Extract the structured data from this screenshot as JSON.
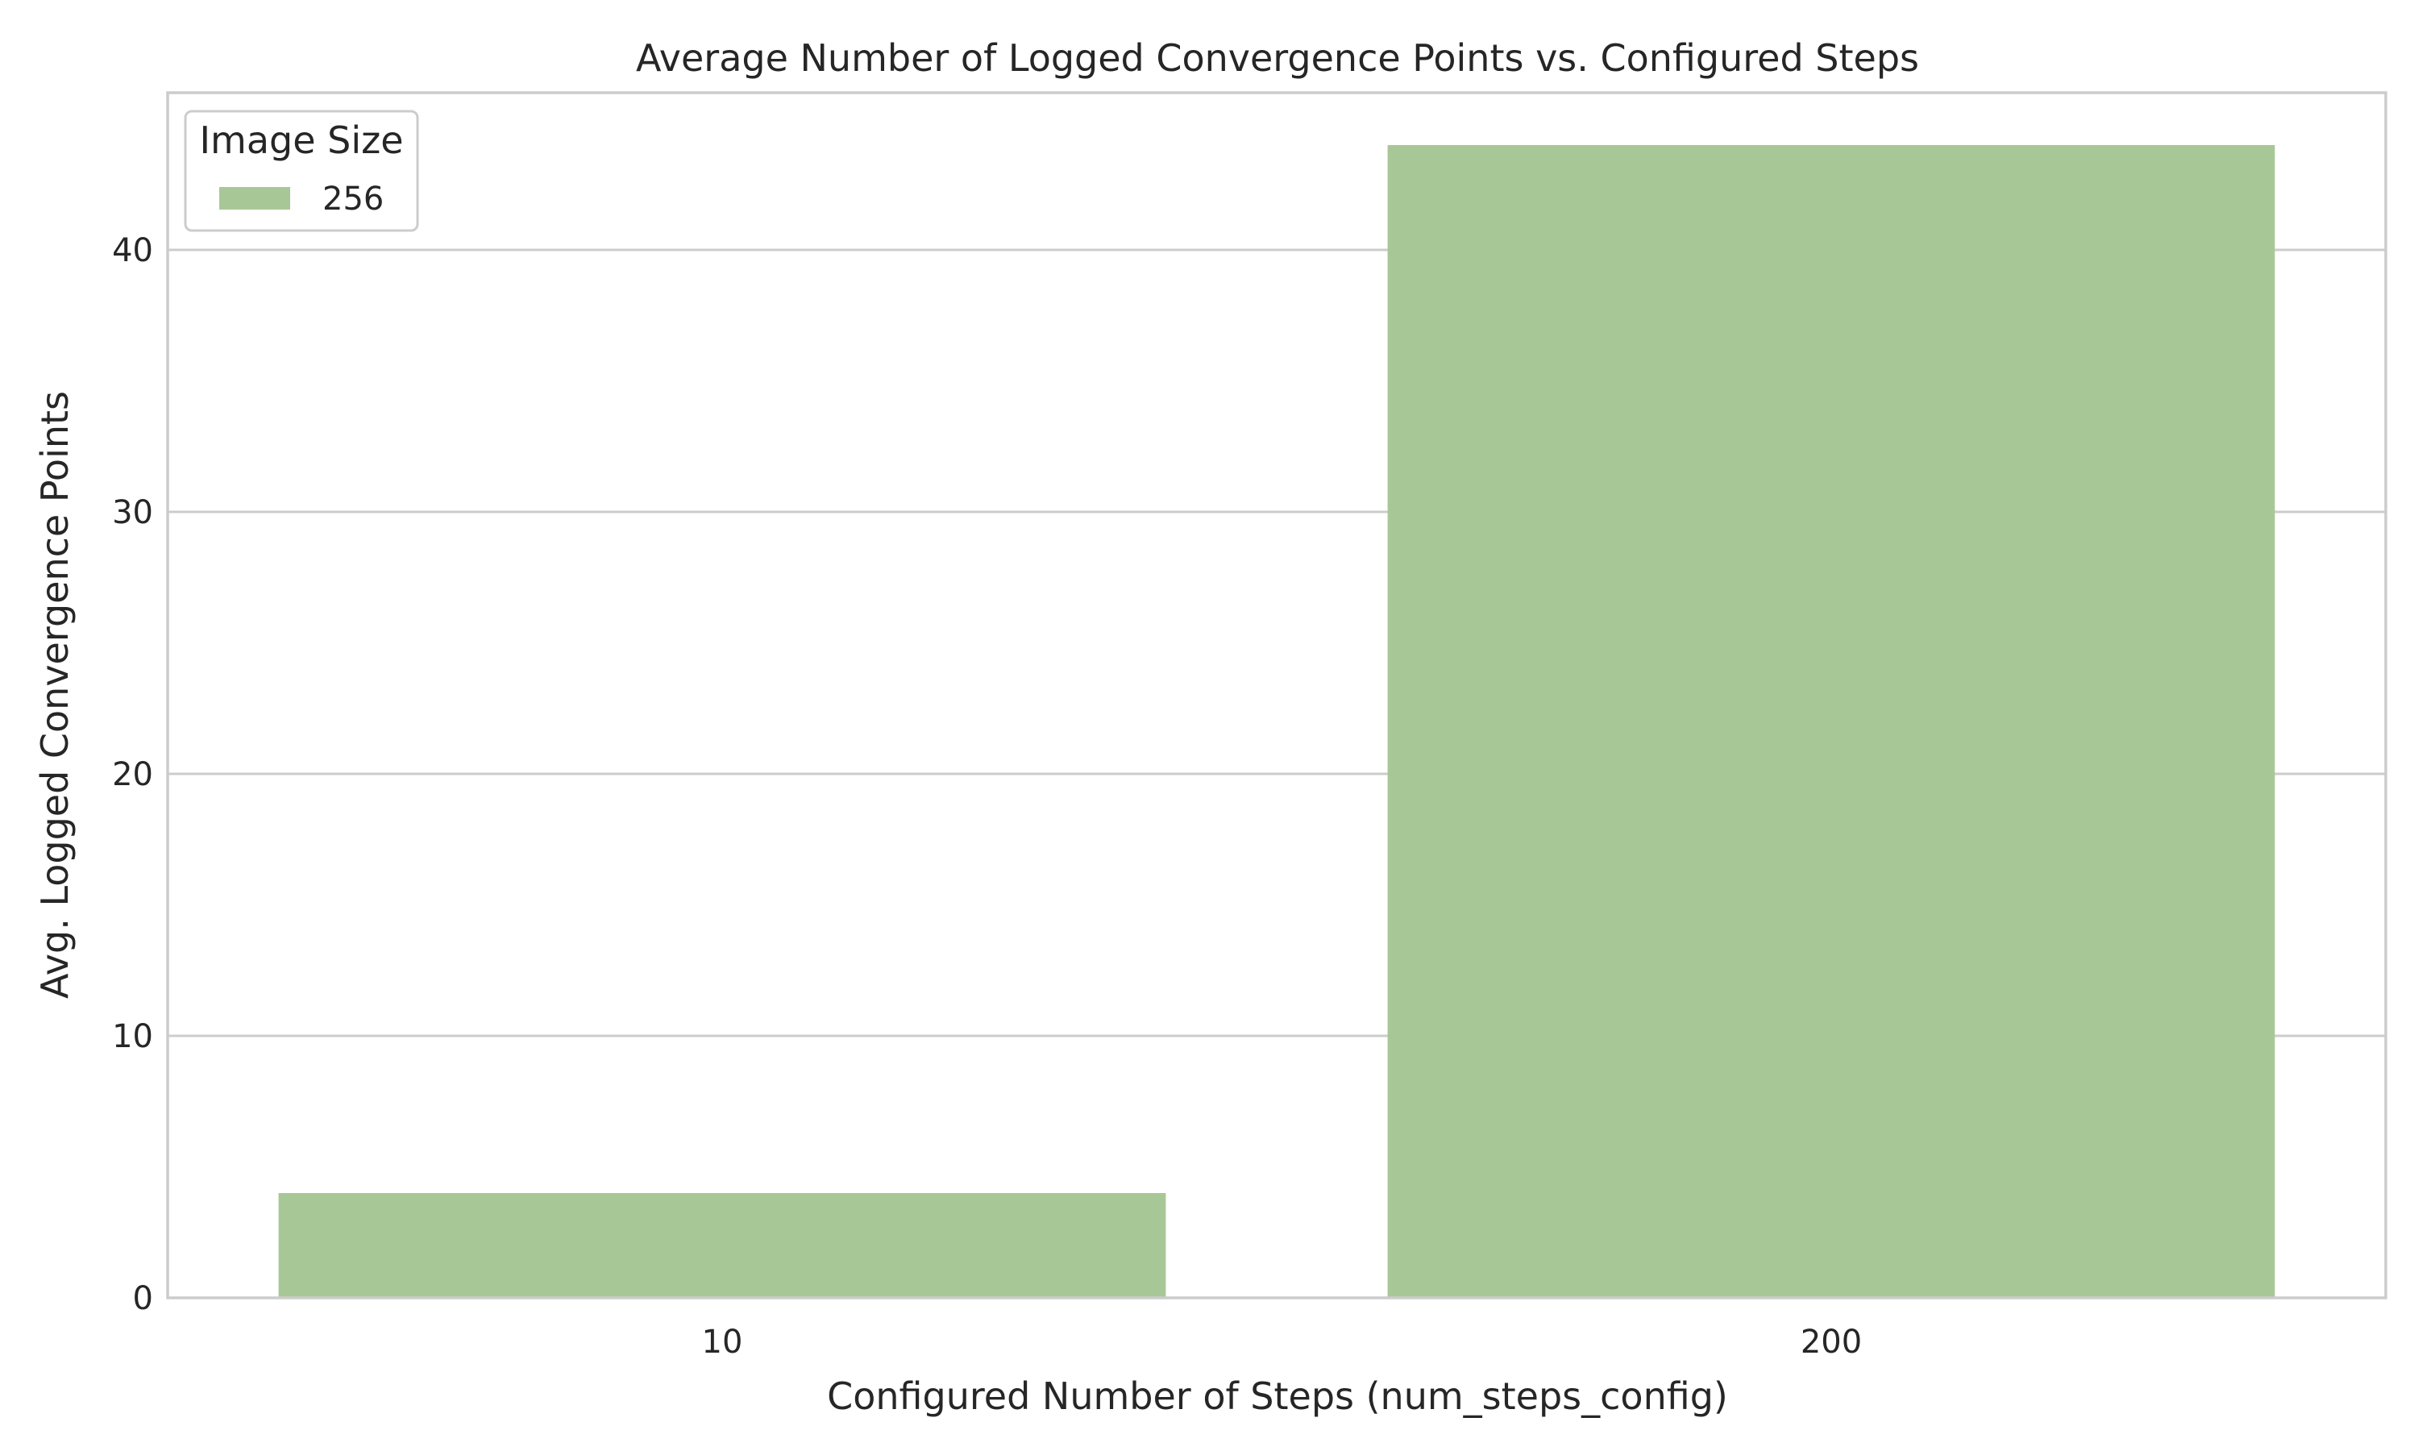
{
  "chart_data": {
    "type": "bar",
    "title": "Average Number of Logged Convergence Points vs. Configured Steps",
    "xlabel": "Configured Number of Steps (num_steps_config)",
    "ylabel": "Avg. Logged Convergence Points",
    "categories": [
      "10",
      "200"
    ],
    "series": [
      {
        "name": "256",
        "values": [
          4,
          44
        ],
        "color": "#a8c796"
      }
    ],
    "ylim": [
      0,
      46
    ],
    "yticks": [
      0,
      10,
      20,
      30,
      40
    ],
    "grid": true,
    "legend": {
      "title": "Image Size",
      "position": "top-left"
    }
  }
}
